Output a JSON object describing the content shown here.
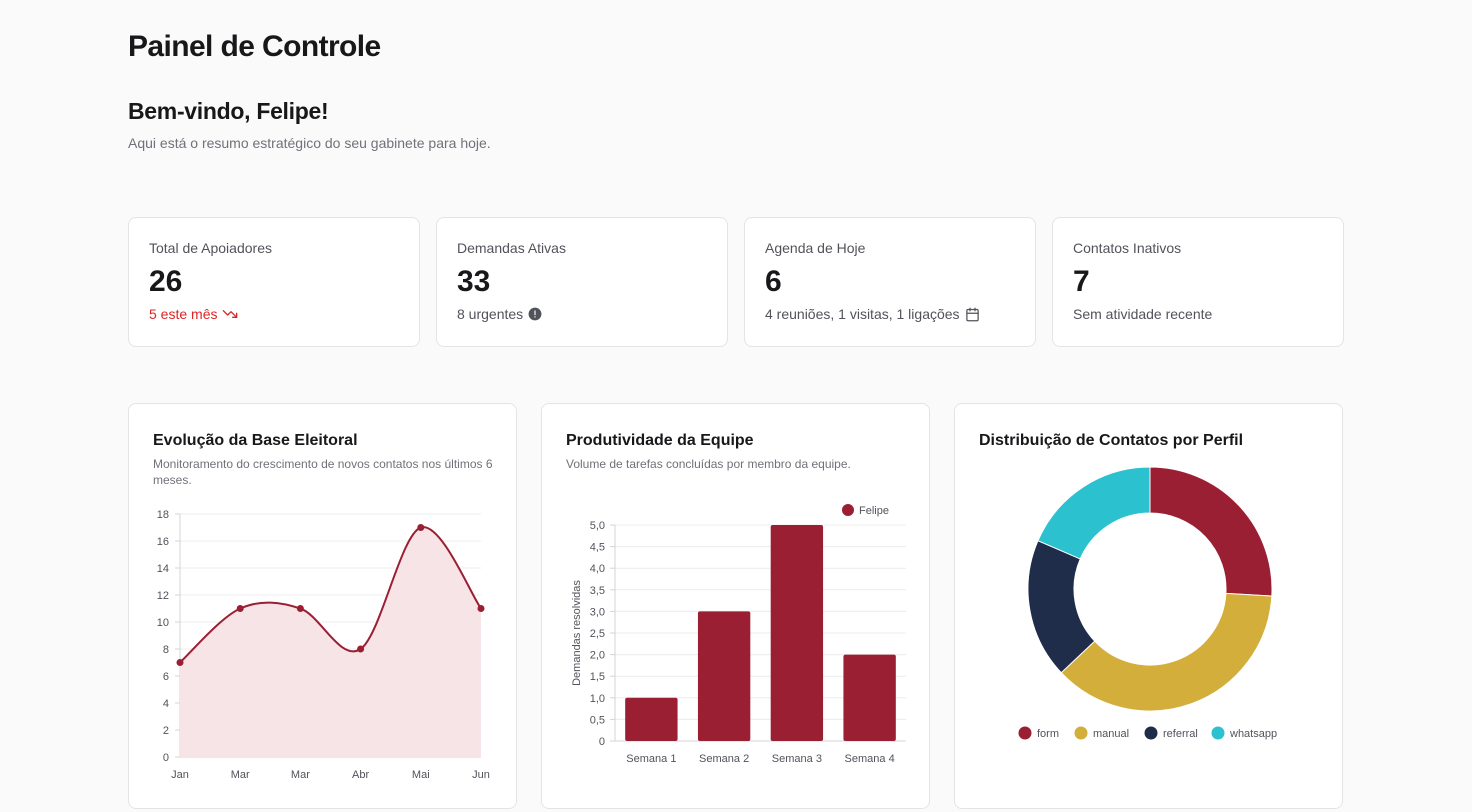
{
  "header": {
    "title": "Painel de Controle"
  },
  "welcome": {
    "title": "Bem-vindo, Felipe!",
    "subtitle": "Aqui está o resumo estratégico do seu gabinete para hoje."
  },
  "stats": [
    {
      "label": "Total de Apoiadores",
      "value": "26",
      "note": "5 este mês",
      "icon": "trending-down-icon"
    },
    {
      "label": "Demandas Ativas",
      "value": "33",
      "note": "8 urgentes",
      "icon": "alert-circle-icon"
    },
    {
      "label": "Agenda de Hoje",
      "value": "6",
      "note": "4 reuniões, 1 visitas, 1 ligações",
      "icon": "calendar-icon"
    },
    {
      "label": "Contatos Inativos",
      "value": "7",
      "note": "Sem atividade recente",
      "icon": ""
    }
  ],
  "colors": {
    "accent": "#9b1f33",
    "gold": "#d4ae3a",
    "navy": "#1f2d4b",
    "cyan": "#2bc1cf",
    "danger": "#dc2626"
  },
  "chart_data": [
    {
      "type": "area",
      "title": "Evolução da Base Eleitoral",
      "subtitle": "Monitoramento do crescimento de novos contatos nos últimos 6 meses.",
      "categories": [
        "Jan",
        "Mar",
        "Mar",
        "Abr",
        "Mai",
        "Jun"
      ],
      "values": [
        7,
        11,
        11,
        8,
        17,
        11
      ],
      "ylim": [
        0,
        18
      ],
      "yticks": [
        "0",
        "2",
        "4",
        "6",
        "8",
        "10",
        "12",
        "14",
        "16",
        "18"
      ],
      "grid": true
    },
    {
      "type": "bar",
      "title": "Produtividade da Equipe",
      "subtitle": "Volume de tarefas concluídas por membro da equipe.",
      "categories": [
        "Semana 1",
        "Semana 2",
        "Semana 3",
        "Semana 4"
      ],
      "series": [
        {
          "name": "Felipe",
          "values": [
            1,
            3,
            5,
            2
          ]
        }
      ],
      "ylabel": "Demandas resolvidas",
      "ylim": [
        0,
        5
      ],
      "yticks": [
        "0",
        "0,5",
        "1,0",
        "1,5",
        "2,0",
        "2,5",
        "3,0",
        "3,5",
        "4,0",
        "4,5",
        "5,0"
      ],
      "legend": "top-right",
      "grid": true
    },
    {
      "type": "pie",
      "title": "Distribuição de Contatos por Perfil",
      "categories": [
        "form",
        "manual",
        "referral",
        "whatsapp"
      ],
      "values": [
        7,
        10,
        5,
        5
      ],
      "legend": "bottom"
    }
  ]
}
